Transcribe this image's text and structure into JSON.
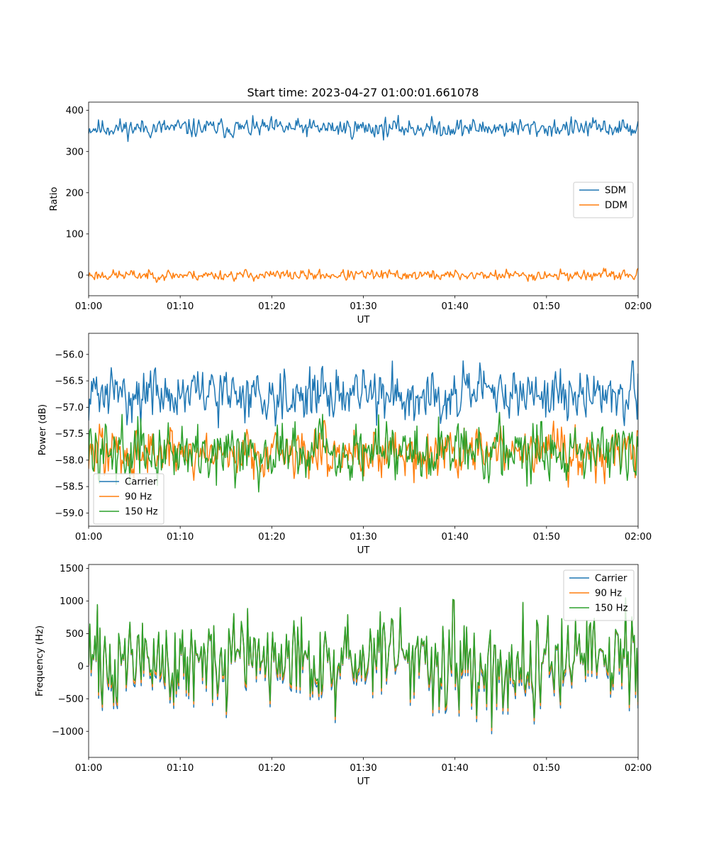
{
  "figure": {
    "title": "Start time: 2023-04-27 01:00:01.661078"
  },
  "colors": {
    "blue": "#1f77b4",
    "orange": "#ff7f0e",
    "green": "#2ca02c"
  },
  "chart_data": [
    {
      "type": "line",
      "title": "Start time: 2023-04-27 01:00:01.661078",
      "xlabel": "UT",
      "ylabel": "Ratio",
      "xlim": [
        "01:00",
        "02:00"
      ],
      "ylim": [
        -50,
        420
      ],
      "xticks": [
        "01:00",
        "01:10",
        "01:20",
        "01:30",
        "01:40",
        "01:50",
        "02:00"
      ],
      "yticks": [
        0,
        100,
        200,
        300,
        400
      ],
      "legend_loc": "center-right",
      "series": [
        {
          "name": "SDM",
          "color": "#1f77b4",
          "mean": 357,
          "amplitude": 14,
          "min": 310,
          "max": 400,
          "seed": 11
        },
        {
          "name": "DDM",
          "color": "#ff7f0e",
          "mean": 0,
          "amplitude": 8,
          "min": -27,
          "max": 30,
          "seed": 23
        }
      ],
      "points_per_series": 560
    },
    {
      "type": "line",
      "title": "",
      "xlabel": "UT",
      "ylabel": "Power (dB)",
      "xlim": [
        "01:00",
        "02:00"
      ],
      "ylim": [
        -59.25,
        -55.6
      ],
      "xticks": [
        "01:00",
        "01:10",
        "01:20",
        "01:30",
        "01:40",
        "01:50",
        "02:00"
      ],
      "yticks": [
        -56.0,
        -56.5,
        -57.0,
        -57.5,
        -58.0,
        -58.5,
        -59.0
      ],
      "ytick_labels": [
        "−56.0",
        "−56.5",
        "−57.0",
        "−57.5",
        "−58.0",
        "−58.5",
        "−59.0"
      ],
      "legend_loc": "lower-left",
      "series": [
        {
          "name": "Carrier",
          "color": "#1f77b4",
          "mean": -56.75,
          "amplitude": 0.3,
          "min": -57.8,
          "max": -55.7,
          "seed": 31
        },
        {
          "name": "90 Hz",
          "color": "#ff7f0e",
          "mean": -57.85,
          "amplitude": 0.3,
          "min": -58.9,
          "max": -57.0,
          "seed": 47
        },
        {
          "name": "150 Hz",
          "color": "#2ca02c",
          "mean": -57.8,
          "amplitude": 0.35,
          "min": -59.05,
          "max": -56.9,
          "seed": 59
        }
      ],
      "points_per_series": 560
    },
    {
      "type": "line",
      "title": "",
      "xlabel": "UT",
      "ylabel": "Frequency (Hz)",
      "xlim": [
        "01:00",
        "02:00"
      ],
      "ylim": [
        -1400,
        1560
      ],
      "xticks": [
        "01:00",
        "01:10",
        "01:20",
        "01:30",
        "01:40",
        "01:50",
        "02:00"
      ],
      "yticks": [
        -1000,
        -500,
        0,
        500,
        1000,
        1500
      ],
      "ytick_labels": [
        "−1000",
        "−500",
        "0",
        "500",
        "1000",
        "1500"
      ],
      "legend_loc": "top-right",
      "series": [
        {
          "name": "Carrier",
          "color": "#1f77b4",
          "offset": -60,
          "min": -1290,
          "max": 1380
        },
        {
          "name": "90 Hz",
          "color": "#ff7f0e",
          "offset": -30,
          "min": -1250,
          "max": 1410
        },
        {
          "name": "150 Hz",
          "color": "#2ca02c",
          "offset": 0,
          "min": -1220,
          "max": 1430
        }
      ],
      "base_seed": 71,
      "base_amplitude": 330,
      "points_per_series": 440
    }
  ]
}
